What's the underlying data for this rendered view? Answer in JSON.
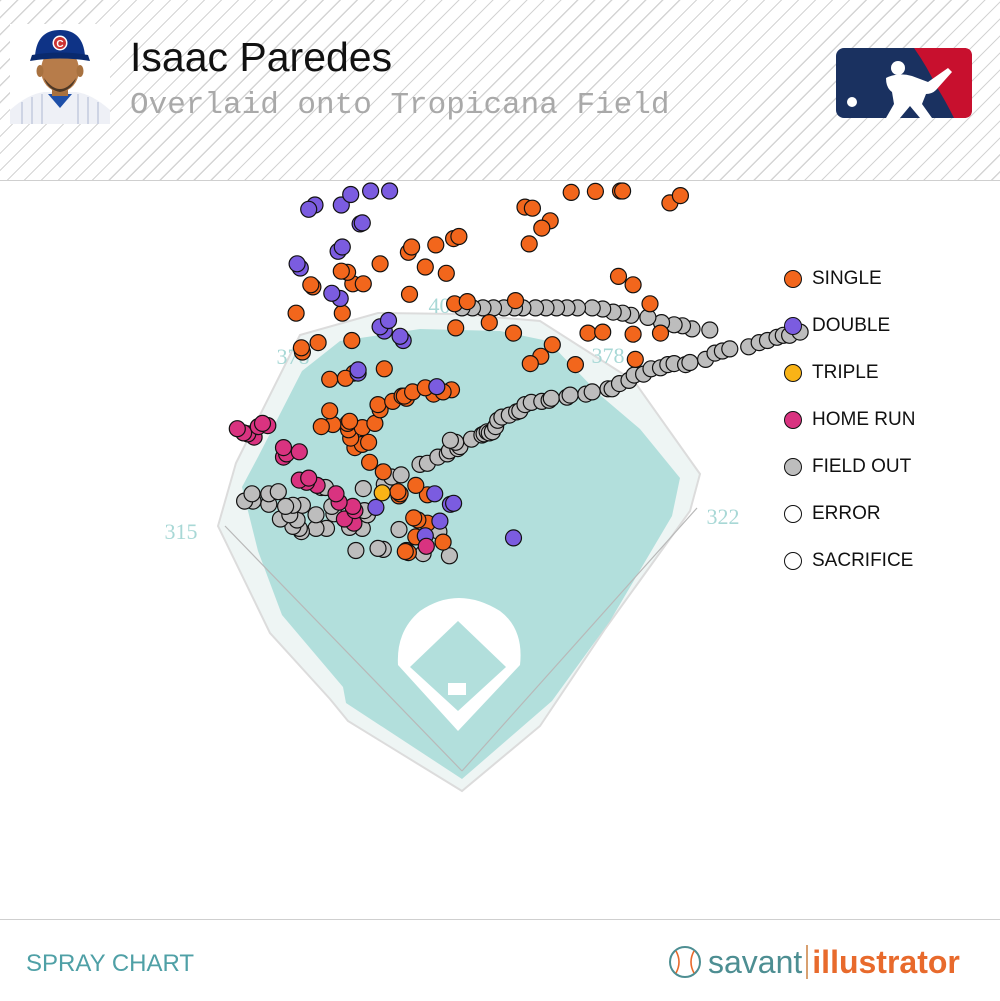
{
  "header": {
    "player_name": "Isaac Paredes",
    "subtitle": "Overlaid onto Tropicana Field"
  },
  "icons": {
    "avatar": "player-headshot-cubs-cap",
    "logo": "mlb-logo",
    "brand_icon": "baseball-icon"
  },
  "colors": {
    "single": "#f2661c",
    "double": "#7b5ce0",
    "triple": "#f9b316",
    "home_run": "#d93380",
    "field_out": "#bdbdbd",
    "error": "#ffffff",
    "sacrifice": "#ffffff",
    "field_fill": "#b2dfdc",
    "accent": "#4fa0a6",
    "mlb_blue": "#1a3160",
    "mlb_red": "#c8102e"
  },
  "footer": {
    "left_label": "SPRAY CHART",
    "brand_a": "savant",
    "brand_b": "illustrator"
  },
  "chart_data": {
    "type": "scatter",
    "distance_labels": [
      "315",
      "378",
      "404",
      "378",
      "322"
    ],
    "legend": [
      {
        "key": "single",
        "label": "SINGLE"
      },
      {
        "key": "double",
        "label": "DOUBLE"
      },
      {
        "key": "triple",
        "label": "TRIPLE"
      },
      {
        "key": "home_run",
        "label": "HOME RUN"
      },
      {
        "key": "field_out",
        "label": "FIELD OUT"
      },
      {
        "key": "error",
        "label": "ERROR"
      },
      {
        "key": "sacrifice",
        "label": "SACRIFICE"
      }
    ],
    "hits": {
      "single": [
        [
          -51,
          208
        ],
        [
          -54,
          209
        ],
        [
          -18,
          218
        ],
        [
          -44,
          223
        ],
        [
          -33,
          236
        ],
        [
          -42,
          239
        ],
        [
          -46,
          241
        ],
        [
          -60,
          262
        ],
        [
          -33,
          263
        ],
        [
          -59,
          264
        ],
        [
          -61,
          266
        ],
        [
          -44,
          272
        ],
        [
          -75,
          285
        ],
        [
          -88,
          294
        ],
        [
          -102,
          308
        ],
        [
          -95,
          311
        ],
        [
          -89,
          313
        ],
        [
          -106,
          317
        ],
        [
          -108,
          325
        ],
        [
          -95,
          327
        ],
        [
          -109,
          331
        ],
        [
          -107,
          333
        ],
        [
          -123,
          330
        ],
        [
          -134,
          328
        ],
        [
          -83,
          331
        ],
        [
          -126,
          343
        ],
        [
          -78,
          344
        ],
        [
          -80,
          349
        ],
        [
          -66,
          352
        ],
        [
          -57,
          357
        ],
        [
          -126,
          373
        ],
        [
          -103,
          379
        ],
        [
          -111,
          374
        ],
        [
          -53,
          355
        ],
        [
          -55,
          357
        ],
        [
          -47,
          361
        ],
        [
          -27,
          359
        ],
        [
          -35,
          365
        ],
        [
          -10,
          363
        ],
        [
          -18,
          361
        ],
        [
          -74,
          383
        ],
        [
          -152,
          399
        ],
        [
          -153,
          403
        ],
        [
          -137,
          408
        ],
        [
          -105,
          410
        ],
        [
          -158,
          436
        ],
        [
          -114,
          436
        ],
        [
          -142,
          461
        ],
        [
          -144,
          463
        ],
        [
          -104,
          464
        ],
        [
          -94,
          464
        ],
        [
          -109,
          475
        ],
        [
          -115,
          476
        ],
        [
          -78,
          483
        ],
        [
          -51,
          494
        ],
        [
          -48,
          499
        ],
        [
          -25,
          501
        ],
        [
          -8,
          507
        ],
        [
          -3,
          509
        ],
        [
          -35,
          480
        ],
        [
          -15,
          474
        ],
        [
          -50,
          454
        ],
        [
          -7,
          445
        ],
        [
          5,
          447
        ],
        [
          26,
          427
        ],
        [
          -6,
          422
        ],
        [
          51,
          448
        ],
        [
          49,
          417
        ],
        [
          75,
          395
        ],
        [
          86,
          406
        ],
        [
          65,
          388
        ],
        [
          108,
          387
        ],
        [
          120,
          417
        ],
        [
          134,
          418
        ],
        [
          163,
          416
        ],
        [
          189,
          417
        ],
        [
          165,
          392
        ],
        [
          179,
          445
        ],
        [
          149,
          471
        ],
        [
          163,
          463
        ],
        [
          64,
          502
        ],
        [
          84,
          524
        ],
        [
          76,
          517
        ],
        [
          60,
          537
        ],
        [
          67,
          536
        ],
        [
          104,
          551
        ],
        [
          127,
          552
        ],
        [
          151,
          570
        ],
        [
          153,
          563
        ],
        [
          198,
          541
        ],
        [
          208,
          548
        ]
      ],
      "double": [
        [
          49,
          222
        ],
        [
          -35,
          224
        ],
        [
          -26,
          264
        ],
        [
          -11,
          254
        ],
        [
          -8,
          255
        ],
        [
          -21,
          238
        ],
        [
          -82,
          251
        ],
        [
          -24,
          366
        ],
        [
          -99,
          379
        ],
        [
          -99,
          382
        ],
        [
          -56,
          410
        ],
        [
          -59,
          414
        ],
        [
          -74,
          419
        ],
        [
          -78,
          423
        ],
        [
          -70,
          429
        ],
        [
          -116,
          450
        ],
        [
          -124,
          455
        ],
        [
          -154,
          479
        ],
        [
          -157,
          483
        ],
        [
          -118,
          495
        ],
        [
          -114,
          499
        ],
        [
          -97,
          521
        ],
        [
          -95,
          522
        ],
        [
          -140,
          539
        ],
        [
          -146,
          535
        ],
        [
          -115,
          539
        ],
        [
          -106,
          549
        ],
        [
          -69,
          561
        ],
        [
          -87,
          564
        ]
      ],
      "triple": [
        [
          -76,
          265
        ]
      ],
      "home_run": [
        [
          -34,
          214
        ],
        [
          -103,
          236
        ],
        [
          -112,
          240
        ],
        [
          -102,
          248
        ],
        [
          -104,
          252
        ],
        [
          -117,
          256
        ],
        [
          -120,
          264
        ],
        [
          -138,
          272
        ],
        [
          -148,
          275
        ],
        [
          -155,
          277
        ],
        [
          -146,
          279
        ],
        [
          -170,
          299
        ],
        [
          -167,
          302
        ],
        [
          -155,
          304
        ],
        [
          -170,
          308
        ],
        [
          -198,
          318
        ],
        [
          -204,
          321
        ],
        [
          -208,
          322
        ],
        [
          -214,
          326
        ],
        [
          -194,
          328
        ],
        [
          -185,
          329
        ],
        [
          -190,
          331
        ]
      ],
      "field_out": [
        [
          -12,
          205
        ],
        [
          -37,
          207
        ],
        [
          -53,
          210
        ],
        [
          -75,
          211
        ],
        [
          -80,
          212
        ],
        [
          -101,
          210
        ],
        [
          -22,
          228
        ],
        [
          -60,
          230
        ],
        [
          -95,
          231
        ],
        [
          -107,
          232
        ],
        [
          -129,
          231
        ],
        [
          -139,
          231
        ],
        [
          -153,
          228
        ],
        [
          -155,
          231
        ],
        [
          -161,
          233
        ],
        [
          -157,
          239
        ],
        [
          -173,
          240
        ],
        [
          -164,
          244
        ],
        [
          -139,
          244
        ],
        [
          -122,
          245
        ],
        [
          -90,
          244
        ],
        [
          -104,
          245
        ],
        [
          -93,
          248
        ],
        [
          -124,
          252
        ],
        [
          -152,
          253
        ],
        [
          -161,
          253
        ],
        [
          -168,
          252
        ],
        [
          -184,
          254
        ],
        [
          -199,
          257
        ],
        [
          -207,
          257
        ],
        [
          -200,
          264
        ],
        [
          -184,
          264
        ],
        [
          -175,
          266
        ],
        [
          -134,
          270
        ],
        [
          -130,
          270
        ],
        [
          -94,
          269
        ],
        [
          -74,
          273
        ],
        [
          -67,
          280
        ],
        [
          -58,
          282
        ],
        [
          -40,
          292
        ],
        [
          -33,
          293
        ],
        [
          -23,
          299
        ],
        [
          -14,
          302
        ],
        [
          -12,
          305
        ],
        [
          -4,
          307
        ],
        [
          -2,
          309
        ],
        [
          -6,
          313
        ],
        [
          -11,
          315
        ],
        [
          9,
          316
        ],
        [
          19,
          320
        ],
        [
          21,
          321
        ],
        [
          24,
          323
        ],
        [
          26,
          322
        ],
        [
          29,
          323
        ],
        [
          32,
          328
        ],
        [
          34,
          334
        ],
        [
          38,
          337
        ],
        [
          45,
          339
        ],
        [
          52,
          342
        ],
        [
          55,
          343
        ],
        [
          60,
          349
        ],
        [
          66,
          351
        ],
        [
          76,
          352
        ],
        [
          83,
          353
        ],
        [
          85,
          355
        ],
        [
          100,
          356
        ],
        [
          103,
          358
        ],
        [
          118,
          359
        ],
        [
          124,
          361
        ],
        [
          139,
          364
        ],
        [
          143,
          364
        ],
        [
          150,
          369
        ],
        [
          159,
          372
        ],
        [
          164,
          377
        ],
        [
          173,
          378
        ],
        [
          180,
          383
        ],
        [
          189,
          384
        ],
        [
          196,
          387
        ],
        [
          202,
          388
        ],
        [
          213,
          387
        ],
        [
          217,
          389
        ],
        [
          232,
          392
        ],
        [
          241,
          398
        ],
        [
          248,
          400
        ],
        [
          255,
          402
        ],
        [
          273,
          404
        ],
        [
          283,
          408
        ],
        [
          291,
          410
        ],
        [
          300,
          413
        ],
        [
          306,
          415
        ],
        [
          312,
          415
        ],
        [
          322,
          418
        ],
        [
          236,
          420
        ],
        [
          219,
          421
        ],
        [
          210,
          424
        ],
        [
          202,
          425
        ],
        [
          190,
          427
        ],
        [
          177,
          432
        ],
        [
          161,
          434
        ],
        [
          153,
          436
        ],
        [
          144,
          437
        ],
        [
          134,
          440
        ],
        [
          124,
          441
        ],
        [
          110,
          441
        ],
        [
          100,
          441
        ],
        [
          90,
          441
        ],
        [
          80,
          441
        ],
        [
          70,
          441
        ],
        [
          58,
          441
        ],
        [
          50,
          441
        ],
        [
          40,
          441
        ],
        [
          30,
          441
        ],
        [
          20,
          441
        ],
        [
          10,
          441
        ],
        [
          0,
          441
        ]
      ]
    }
  }
}
